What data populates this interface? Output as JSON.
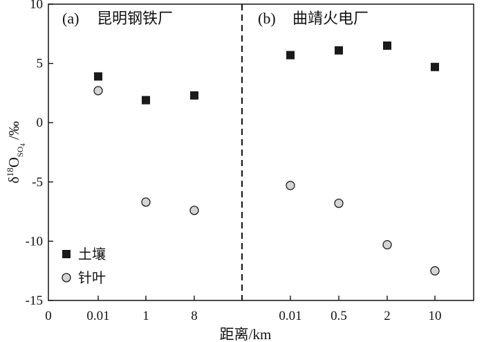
{
  "chart_data": {
    "type": "scatter",
    "ylabel_parts": {
      "base": "δ",
      "sup": "18",
      "main": "O",
      "sub": "SO",
      "sub4": "4",
      "unit": " /‰"
    },
    "xlabel": "距离/km",
    "ylim": [
      -15,
      10
    ],
    "yticks": [
      "10",
      "5",
      "0",
      "-5",
      "-10",
      "-15"
    ],
    "ytick_values": [
      10,
      5,
      0,
      -5,
      -10,
      -15
    ],
    "x_origin_label": "0",
    "grid": false,
    "legend_position": "bottom-left",
    "colors": {
      "soil": "#1a1a1a",
      "needle": "#d4d4d4",
      "needle_edge": "#1a1a1a"
    },
    "series_names": {
      "soil": "土壤",
      "needle": "针叶"
    },
    "panels": [
      {
        "label": "(a)",
        "title": "昆明钢铁厂",
        "categories": [
          "0.01",
          "1",
          "8"
        ],
        "series": [
          {
            "name": "土壤",
            "marker": "square",
            "values": [
              3.9,
              1.9,
              2.3
            ]
          },
          {
            "name": "针叶",
            "marker": "circle",
            "values": [
              2.7,
              -6.7,
              -7.4
            ]
          }
        ]
      },
      {
        "label": "(b)",
        "title": "曲靖火电厂",
        "categories": [
          "0.01",
          "0.5",
          "2",
          "10"
        ],
        "series": [
          {
            "name": "土壤",
            "marker": "square",
            "values": [
              5.7,
              6.1,
              6.5,
              4.7
            ]
          },
          {
            "name": "针叶",
            "marker": "circle",
            "values": [
              -5.3,
              -6.8,
              -10.3,
              -12.5
            ]
          }
        ]
      }
    ]
  }
}
